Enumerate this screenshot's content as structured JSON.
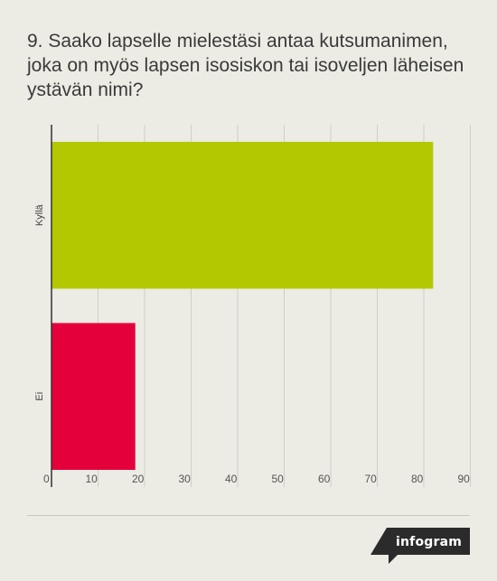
{
  "title": "9. Saako lapselle mielestäsi antaa kutsumanimen, joka on myös lapsen isosiskon tai isoveljen läheisen ystävän nimi?",
  "chart_data": {
    "type": "bar",
    "orientation": "horizontal",
    "categories": [
      "Kyllä",
      "Ei"
    ],
    "values": [
      82,
      18
    ],
    "colors": [
      "#b4c800",
      "#e4003a"
    ],
    "xlim": [
      0,
      90
    ],
    "xticks": [
      0,
      10,
      20,
      30,
      40,
      50,
      60,
      70,
      80,
      90
    ],
    "grid": true
  },
  "brand": {
    "name": "infogram"
  }
}
